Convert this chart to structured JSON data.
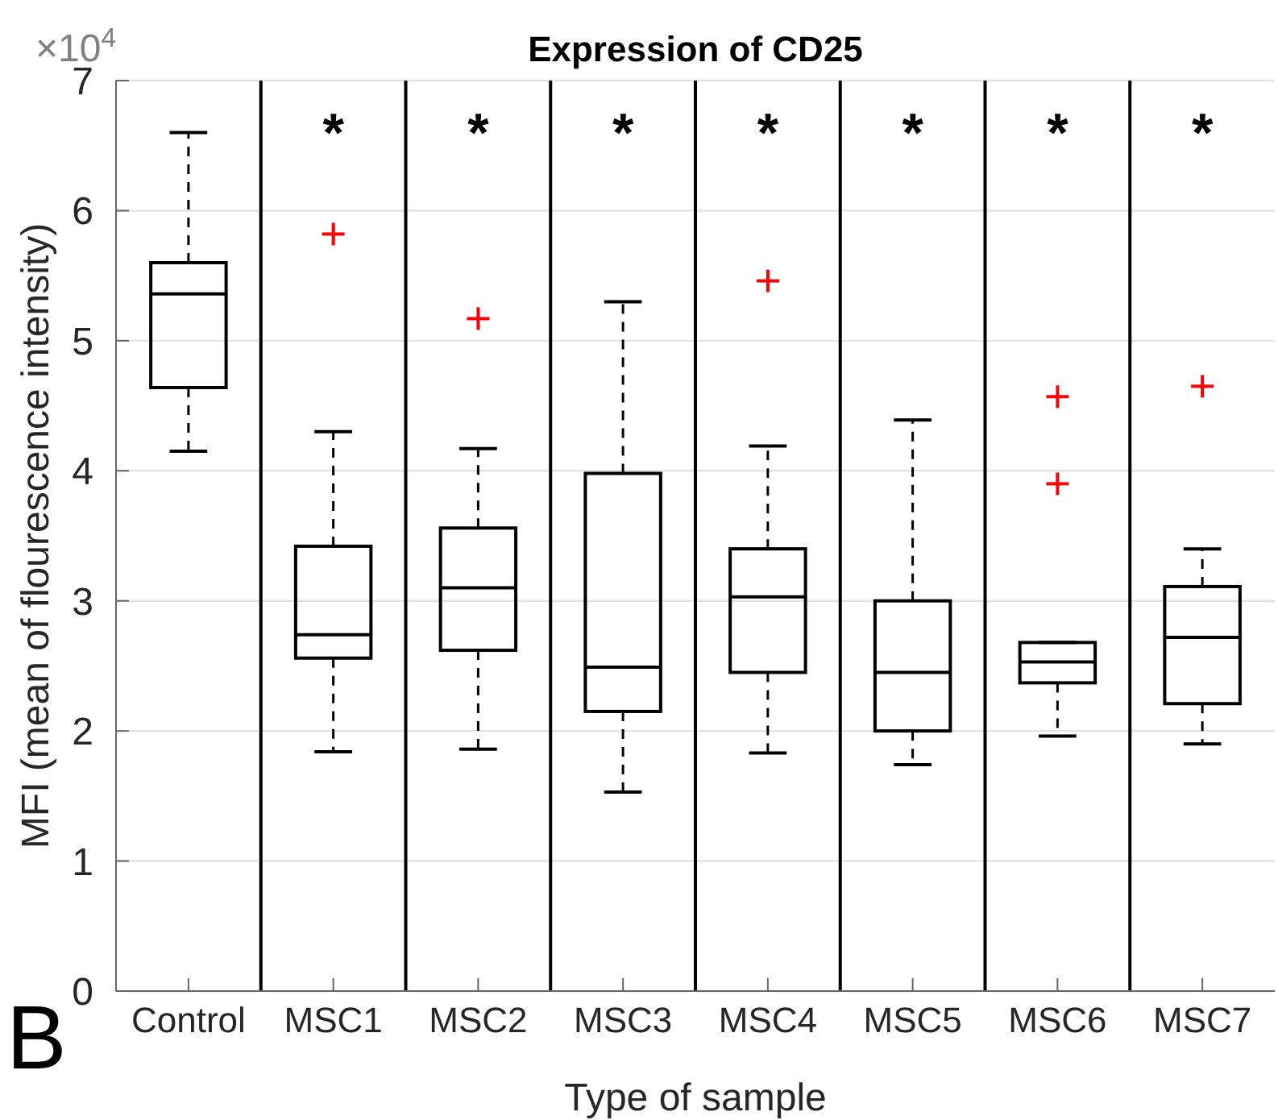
{
  "chart_data": {
    "type": "box",
    "title": "Expression of CD25",
    "xlabel": "Type of sample",
    "ylabel": "MFI (mean of flourescence intensity)",
    "categories": [
      "Control",
      "MSC1",
      "MSC2",
      "MSC3",
      "MSC4",
      "MSC5",
      "MSC6",
      "MSC7"
    ],
    "ylim": [
      0,
      7
    ],
    "yticks": [
      0,
      1,
      2,
      3,
      4,
      5,
      6,
      7
    ],
    "grid": "y",
    "series": [
      {
        "color": "#000000",
        "boxes": [
          {
            "low": 4.15,
            "q1": 4.64,
            "median": 5.36,
            "q3": 5.6,
            "high": 6.6
          },
          {
            "low": 1.84,
            "q1": 2.56,
            "median": 2.74,
            "q3": 3.42,
            "high": 4.3
          },
          {
            "low": 1.86,
            "q1": 2.62,
            "median": 3.1,
            "q3": 3.56,
            "high": 4.17
          },
          {
            "low": 1.53,
            "q1": 2.15,
            "median": 2.49,
            "q3": 3.98,
            "high": 5.3
          },
          {
            "low": 1.83,
            "q1": 2.45,
            "median": 3.03,
            "q3": 3.4,
            "high": 4.19
          },
          {
            "low": 1.74,
            "q1": 2.0,
            "median": 2.45,
            "q3": 3.0,
            "high": 4.39
          },
          {
            "low": 1.96,
            "q1": 2.37,
            "median": 2.53,
            "q3": 2.68,
            "high": 2.68
          },
          {
            "low": 1.9,
            "q1": 2.21,
            "median": 2.72,
            "q3": 3.11,
            "high": 3.4
          }
        ]
      },
      {
        "type": "scatter",
        "color": "#ff0000",
        "marker": "cross",
        "x": [
          "MSC1",
          "MSC2",
          "MSC4",
          "MSC6",
          "MSC6",
          "MSC7"
        ],
        "values": [
          5.82,
          5.17,
          5.46,
          4.57,
          3.9,
          4.65
        ]
      }
    ],
    "annotations": [
      "×10$^{4}$",
      "B",
      "*",
      "*",
      "*",
      "*",
      "*",
      "*",
      "*"
    ]
  }
}
